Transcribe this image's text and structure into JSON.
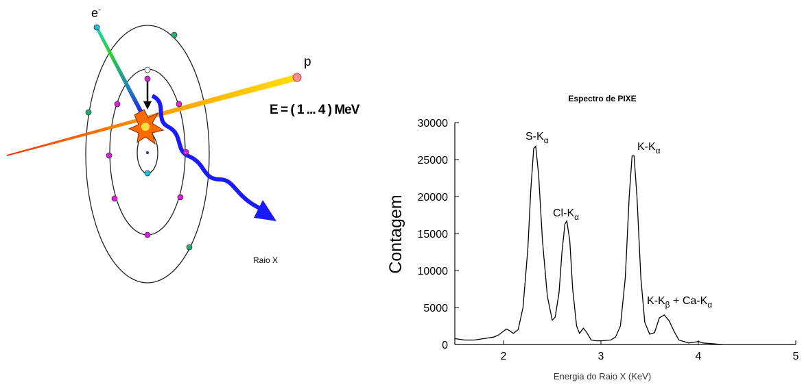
{
  "diagram": {
    "electron": {
      "symbol": "e",
      "charge": "-"
    },
    "proton": "p",
    "energy": "E = ( 1 ... 4 ) MeV",
    "xray": "Raio X"
  },
  "chart_data": {
    "type": "line",
    "title": "Espectro de PIXE",
    "xlabel": "Energia do Raio X (KeV)",
    "ylabel": "Contagem",
    "xlim": [
      1.5,
      5
    ],
    "xticks": [
      2,
      3,
      4,
      5
    ],
    "ylim": [
      0,
      30000
    ],
    "yticks": [
      0,
      5000,
      10000,
      15000,
      20000,
      25000,
      30000
    ],
    "color": "#000000",
    "x": [
      1.5,
      1.6,
      1.7,
      1.8,
      1.9,
      1.95,
      2.0,
      2.03,
      2.07,
      2.1,
      2.15,
      2.2,
      2.25,
      2.28,
      2.31,
      2.33,
      2.36,
      2.4,
      2.45,
      2.5,
      2.53,
      2.57,
      2.6,
      2.63,
      2.65,
      2.68,
      2.71,
      2.75,
      2.78,
      2.82,
      2.85,
      2.9,
      2.95,
      3.0,
      3.1,
      3.15,
      3.2,
      3.25,
      3.29,
      3.32,
      3.34,
      3.37,
      3.41,
      3.45,
      3.5,
      3.55,
      3.6,
      3.65,
      3.7,
      3.75,
      3.8,
      3.9,
      4.0,
      4.05,
      4.2,
      4.25
    ],
    "values": [
      800,
      600,
      600,
      800,
      1000,
      1300,
      1800,
      2100,
      1800,
      1500,
      2000,
      5000,
      13000,
      21000,
      26500,
      26800,
      23000,
      14000,
      6500,
      3300,
      3700,
      7000,
      12500,
      16300,
      16700,
      14000,
      7500,
      2500,
      1500,
      2200,
      1700,
      600,
      500,
      500,
      600,
      1000,
      2500,
      9000,
      20000,
      25500,
      25500,
      20000,
      9000,
      3000,
      1400,
      1600,
      3600,
      4000,
      3200,
      1800,
      600,
      200,
      400,
      200,
      50,
      0
    ],
    "annotations": [
      {
        "parts": [
          "S-K",
          "α"
        ]
      },
      {
        "parts": [
          "Cl-K",
          "α"
        ]
      },
      {
        "parts": [
          "K-K",
          "α"
        ]
      },
      {
        "parts": [
          "K-K",
          "β",
          " + Ca-K",
          "α"
        ]
      }
    ]
  }
}
